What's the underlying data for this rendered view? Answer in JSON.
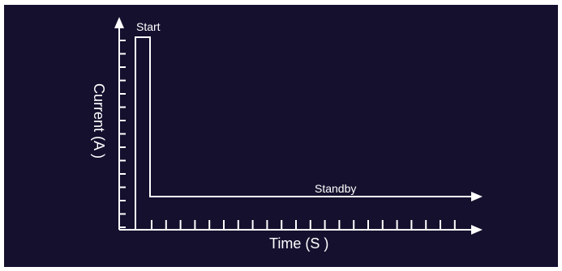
{
  "diagram": {
    "labels": {
      "start": "Start",
      "standby": "Standby",
      "xlabel": "Time (S )",
      "ylabel": "Current (A )"
    },
    "colors": {
      "background": "#15102e",
      "stroke": "#ffffff"
    }
  }
}
